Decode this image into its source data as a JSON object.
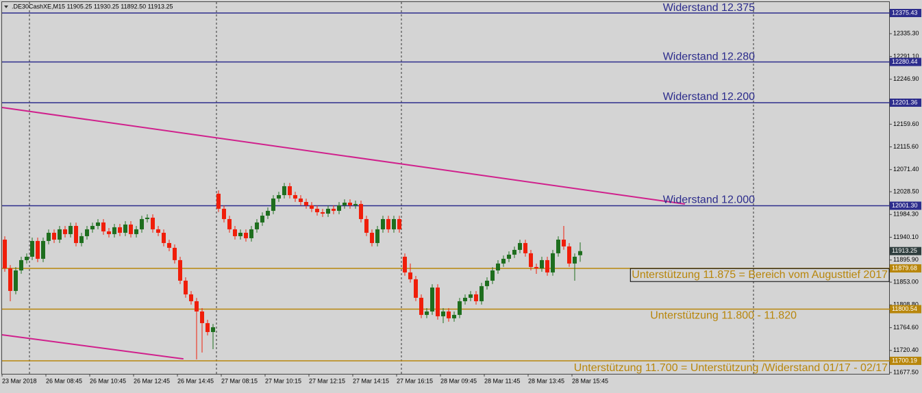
{
  "chart_data": {
    "type": "candlestick",
    "header": ".DE30CashXE,M15  11905.25 11930.25 11892.50 11913.25",
    "categories": [
      "23 Mar 2018",
      null,
      null,
      null,
      null,
      null,
      null,
      null,
      "26 Mar 08:45",
      null,
      null,
      null,
      null,
      null,
      null,
      null,
      "26 Mar 10:45",
      null,
      null,
      null,
      null,
      null,
      null,
      null,
      "26 Mar 12:45",
      null,
      null,
      null,
      null,
      null,
      null,
      null,
      "26 Mar 14:45",
      null,
      null,
      null,
      null,
      null,
      null,
      null,
      "27 Mar 08:15",
      null,
      null,
      null,
      null,
      null,
      null,
      null,
      "27 Mar 10:15",
      null,
      null,
      null,
      null,
      null,
      null,
      null,
      "27 Mar 12:15",
      null,
      null,
      null,
      null,
      null,
      null,
      null,
      "27 Mar 14:15",
      null,
      null,
      null,
      null,
      null,
      null,
      null,
      "27 Mar 16:15",
      null,
      null,
      null,
      null,
      null,
      null,
      null,
      "28 Mar 09:45",
      null,
      null,
      null,
      null,
      null,
      null,
      null,
      "28 Mar 11:45",
      null,
      null,
      null,
      null,
      null,
      null,
      null,
      "28 Mar 13:45",
      null,
      null,
      null,
      null,
      null,
      null,
      null,
      "28 Mar 15:45",
      null
    ],
    "open": [
      11935.5,
      11879.7,
      11835.9,
      11875.7,
      11895.7,
      11902.3,
      11932.9,
      11898.3,
      11932.9,
      11948.8,
      11935.5,
      11955.5,
      11946.2,
      11962.1,
      11928.9,
      11942.2,
      11955.5,
      11962.1,
      11968.8,
      11951.5,
      11946.2,
      11959.5,
      11948.8,
      11964.8,
      11946.2,
      11955.5,
      11975.4,
      11978.1,
      11955.5,
      11948.8,
      11928.9,
      11919.6,
      11895.7,
      11855.8,
      11829.2,
      11815.9,
      11796.0,
      11773.4,
      11756.1,
      12024.6,
      11995.4,
      11975.4,
      11955.5,
      11942.2,
      11948.8,
      11938.2,
      11955.5,
      11968.8,
      11982.0,
      11991.4,
      12015.3,
      12021.9,
      12039.2,
      12021.9,
      12015.3,
      12008.6,
      12002.0,
      11995.4,
      11988.7,
      11986.0,
      11995.4,
      11991.4,
      12002.0,
      12007.3,
      12002.0,
      12004.7,
      11975.4,
      11948.8,
      11928.9,
      11955.5,
      11975.4,
      11955.5,
      11975.4,
      11902.3,
      11871.8,
      11858.5,
      11822.6,
      11789.4,
      11796.0,
      11842.5,
      11786.7,
      11796.0,
      11782.7,
      11789.4,
      11815.9,
      11822.6,
      11829.2,
      11815.9,
      11845.2,
      11855.8,
      11875.7,
      11889.1,
      11898.3,
      11906.3,
      11915.6,
      11928.9,
      11909.0,
      11882.4,
      11879.7,
      11895.7,
      11871.8,
      11909.0,
      11935.5,
      11922.3,
      11889.1,
      11905.25
    ],
    "high": [
      11942.0,
      11886.2,
      11882.2,
      11902.2,
      11908.8,
      11939.4,
      11939.4,
      11939.4,
      11955.3,
      11955.3,
      11962.0,
      11962.0,
      11968.6,
      11968.6,
      11948.7,
      11962.0,
      11968.6,
      11975.3,
      11975.3,
      11958.0,
      11966.0,
      11966.0,
      11971.3,
      11971.3,
      11962.0,
      11981.9,
      11984.6,
      11984.6,
      11962.0,
      11955.3,
      11935.4,
      11926.1,
      11902.2,
      11862.3,
      11835.7,
      11822.4,
      11802.5,
      11779.9,
      11771.9,
      12031.1,
      12001.9,
      11981.9,
      11962.0,
      11955.3,
      11955.3,
      11962.0,
      11975.3,
      11988.5,
      11997.9,
      12021.8,
      12028.4,
      12045.7,
      12045.7,
      12028.4,
      12021.8,
      12015.1,
      12008.5,
      12001.9,
      11995.2,
      12001.9,
      12001.9,
      12008.5,
      12013.8,
      12013.8,
      12011.2,
      12011.2,
      11981.9,
      11955.3,
      11962.0,
      11981.9,
      11981.9,
      11981.9,
      11981.9,
      11908.8,
      11889.1,
      11865.0,
      11829.1,
      11802.5,
      11849.0,
      11849.0,
      11802.5,
      11802.5,
      11795.9,
      11822.4,
      11829.1,
      11835.7,
      11835.7,
      11851.7,
      11862.3,
      11882.2,
      11895.6,
      11904.8,
      11912.8,
      11922.1,
      11935.4,
      11935.4,
      11915.5,
      11888.9,
      11902.2,
      11902.2,
      11915.5,
      11942.0,
      11962.1,
      11928.8,
      11908.8,
      11930.25
    ],
    "low": [
      11873.2,
      11815.9,
      11829.4,
      11869.2,
      11889.2,
      11895.8,
      11891.8,
      11891.8,
      11926.4,
      11929.0,
      11929.0,
      11939.7,
      11939.7,
      11922.4,
      11922.4,
      11935.7,
      11949.0,
      11955.6,
      11945.0,
      11939.7,
      11939.7,
      11942.3,
      11942.3,
      11939.7,
      11939.7,
      11949.0,
      11968.9,
      11949.0,
      11942.3,
      11922.4,
      11913.1,
      11889.2,
      11849.3,
      11822.7,
      11809.4,
      11703.0,
      11716.3,
      11749.6,
      11722.9,
      11988.9,
      11968.9,
      11949.0,
      11935.7,
      11935.7,
      11931.7,
      11931.7,
      11949.0,
      11962.3,
      11975.5,
      11984.9,
      12008.8,
      12015.4,
      12015.4,
      12008.8,
      12002.1,
      11995.5,
      11988.9,
      11982.2,
      11979.5,
      11979.5,
      11984.9,
      11984.9,
      11995.5,
      11995.5,
      11995.5,
      11968.9,
      11942.3,
      11922.4,
      11922.4,
      11949.0,
      11949.0,
      11949.0,
      11949.0,
      11865.3,
      11852.0,
      11816.1,
      11782.9,
      11782.9,
      11789.5,
      11780.2,
      11773.4,
      11776.2,
      11776.2,
      11782.9,
      11809.4,
      11816.1,
      11809.4,
      11809.4,
      11838.7,
      11849.3,
      11869.2,
      11882.6,
      11891.8,
      11899.8,
      11909.1,
      11902.5,
      11875.9,
      11869.1,
      11873.2,
      11865.3,
      11865.3,
      11902.5,
      11915.8,
      11882.6,
      11855.8,
      11892.5
    ],
    "close": [
      11879.7,
      11835.9,
      11875.7,
      11895.7,
      11902.3,
      11932.9,
      11898.3,
      11932.9,
      11948.8,
      11935.5,
      11955.5,
      11946.2,
      11962.1,
      11928.9,
      11942.2,
      11955.5,
      11962.1,
      11968.8,
      11951.5,
      11946.2,
      11959.5,
      11948.8,
      11964.8,
      11946.2,
      11955.5,
      11975.4,
      11978.1,
      11955.5,
      11948.8,
      11928.9,
      11919.6,
      11895.7,
      11855.8,
      11829.2,
      11815.9,
      11796.0,
      11773.4,
      11756.1,
      11765.4,
      11995.4,
      11975.4,
      11955.5,
      11942.2,
      11948.8,
      11938.2,
      11955.5,
      11968.8,
      11982.0,
      11991.4,
      12015.3,
      12021.9,
      12039.2,
      12021.9,
      12015.3,
      12008.6,
      12002.0,
      11995.4,
      11988.7,
      11986.0,
      11995.4,
      11991.4,
      12002.0,
      12007.3,
      12002.0,
      12004.7,
      11975.4,
      11948.8,
      11928.9,
      11955.5,
      11975.4,
      11955.5,
      11975.4,
      11955.5,
      11871.8,
      11858.5,
      11822.6,
      11789.4,
      11796.0,
      11842.5,
      11786.7,
      11796.0,
      11782.7,
      11789.4,
      11815.9,
      11822.6,
      11829.2,
      11815.9,
      11845.2,
      11855.8,
      11875.7,
      11889.1,
      11898.3,
      11906.3,
      11915.6,
      11928.9,
      11909.0,
      11882.4,
      11879.7,
      11895.7,
      11871.8,
      11909.0,
      11935.5,
      11922.3,
      11889.1,
      11902.3,
      11913.25
    ],
    "up_color": "#1e6e1e",
    "down_color": "#f01e0a",
    "ylim": [
      11676.3,
      12396.7
    ],
    "yticks": [
      {
        "value": 12335.3,
        "label": "12335.30"
      },
      {
        "value": 12291.1,
        "label": "12291.10"
      },
      {
        "value": 12246.9,
        "label": "12246.90"
      },
      {
        "value": 12159.6,
        "label": "12159.60"
      },
      {
        "value": 12115.6,
        "label": "12115.60"
      },
      {
        "value": 12071.4,
        "label": "12071.40"
      },
      {
        "value": 12028.5,
        "label": "12028.50"
      },
      {
        "value": 11984.3,
        "label": "11984.30"
      },
      {
        "value": 11940.1,
        "label": "11940.10"
      },
      {
        "value": 11895.9,
        "label": "11895.90"
      },
      {
        "value": 11853,
        "label": "11853.00"
      },
      {
        "value": 11808.8,
        "label": "11808.80"
      },
      {
        "value": 11764.6,
        "label": "11764.60"
      },
      {
        "value": 11720.4,
        "label": "11720.40"
      },
      {
        "value": 11677.5,
        "label": "11677.50"
      }
    ],
    "levels": [
      {
        "value": 12375.43,
        "label": "12375.43",
        "color": "#2c2c8c",
        "annotation": "Widerstand 12.375"
      },
      {
        "value": 12280.44,
        "label": "12280.44",
        "color": "#2c2c8c",
        "annotation": "Widerstand 12.280"
      },
      {
        "value": 12201.36,
        "label": "12201.36",
        "color": "#2c2c8c",
        "annotation": "Widerstand 12.200"
      },
      {
        "value": 12001.3,
        "label": "12001.30",
        "color": "#2c2c8c",
        "annotation": "Widerstand 12.000"
      },
      {
        "value": 11879.68,
        "label": "11879.68",
        "color": "#b8860b",
        "annotation": "Unterstützung 11.875 = Bereich vom Augusttief 2017"
      },
      {
        "value": 11800.54,
        "label": "11800.54",
        "color": "#b8860b",
        "annotation": "Unterstützung 11.800 - 11.820"
      },
      {
        "value": 11700.19,
        "label": "11700.19",
        "color": "#b8860b",
        "annotation": "Unterstützung 11.700 = Unterstützung /Widerstand 01/17 - 02/17"
      }
    ],
    "last_price": 11913.25,
    "trendlines": [
      {
        "color": "#d0208c",
        "points": [
          [
            -0.5,
            12192.0
          ],
          [
            124.1,
            12004.6
          ]
        ]
      },
      {
        "color": "#d0208c",
        "points": [
          [
            -0.5,
            11750.7
          ],
          [
            32.6,
            11704.0
          ]
        ]
      }
    ]
  }
}
